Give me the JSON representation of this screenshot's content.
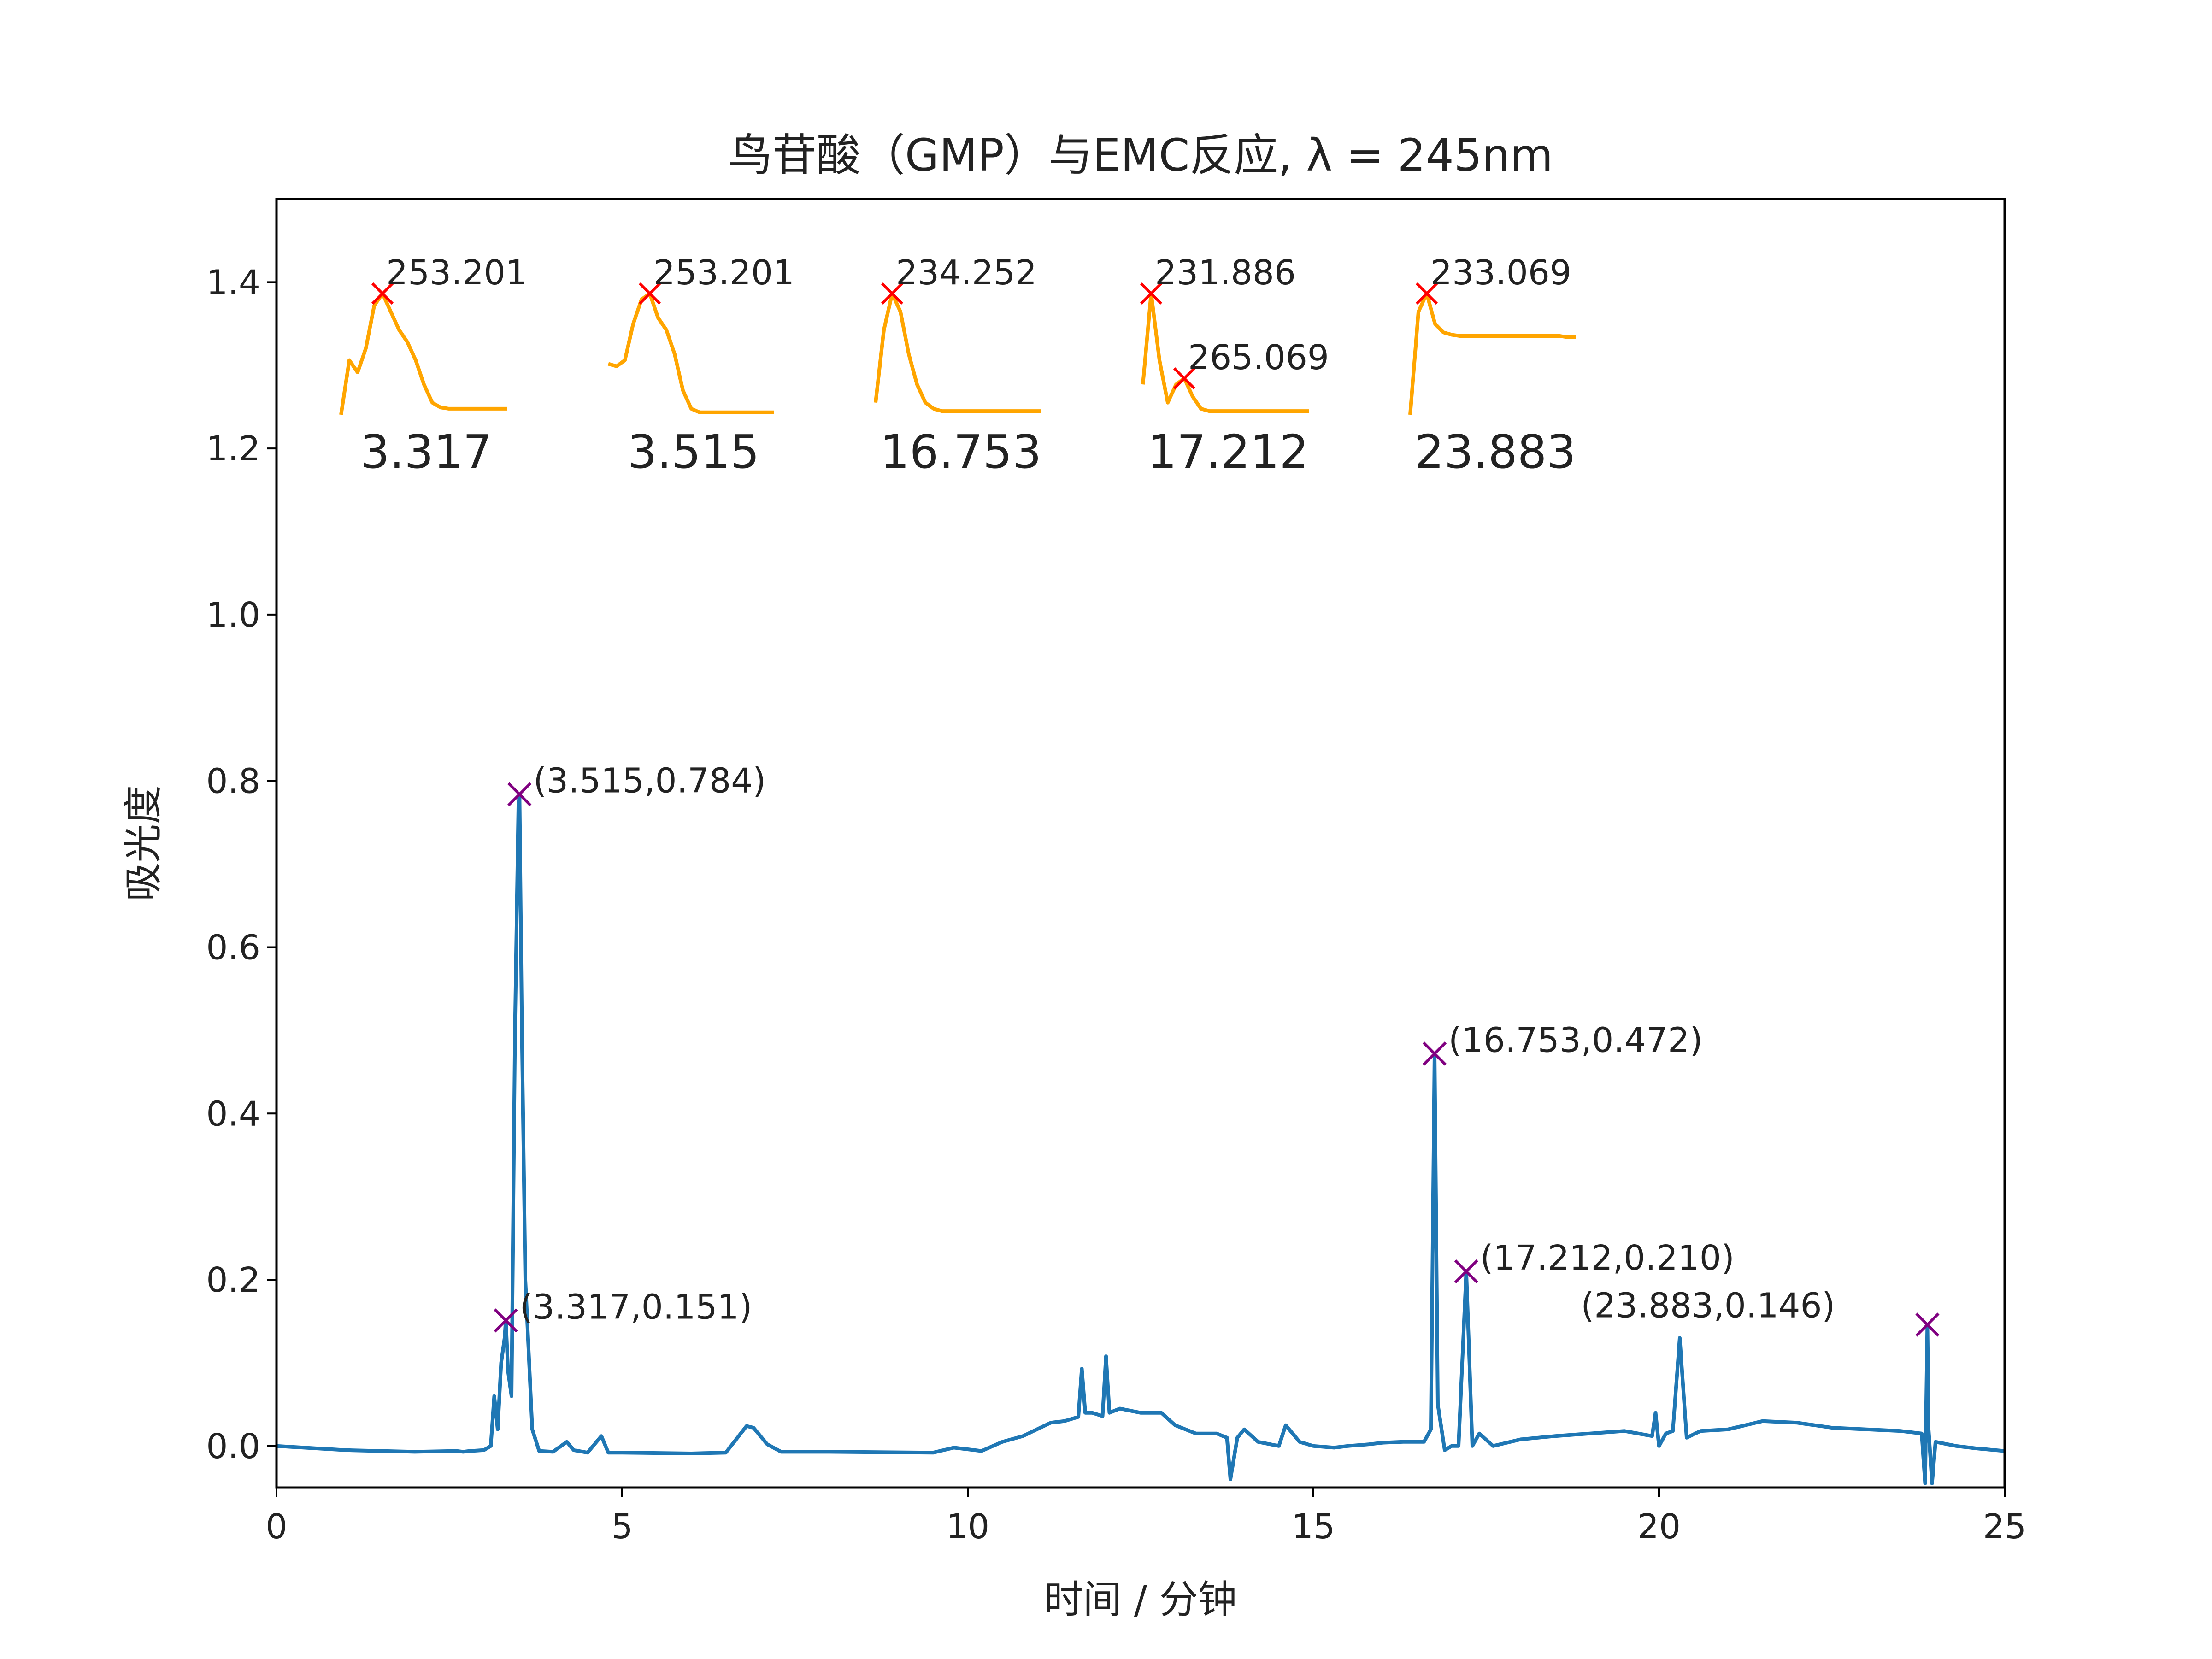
{
  "chart_data": {
    "type": "line",
    "title": "鸟苷酸（GMP）与EMC反应, λ = 245nm",
    "xlabel": "时间 / 分钟",
    "ylabel": "吸光度",
    "xlim": [
      0,
      25
    ],
    "ylim": [
      -0.05,
      1.5
    ],
    "xticks": [
      0,
      5,
      10,
      15,
      20,
      25
    ],
    "yticks": [
      0.0,
      0.2,
      0.4,
      0.6,
      0.8,
      1.0,
      1.2,
      1.4
    ],
    "xtick_labels": [
      "0",
      "5",
      "10",
      "15",
      "20",
      "25"
    ],
    "ytick_labels": [
      "0.0",
      "0.2",
      "0.4",
      "0.6",
      "0.8",
      "1.0",
      "1.2",
      "1.4"
    ],
    "grid": false,
    "colors": {
      "trace": "#1f77b4",
      "marker": "#800080",
      "spectrum": "#ffa500",
      "spectrum_peak": "#ff0000"
    },
    "series": [
      {
        "x": [
          0,
          1,
          2,
          2.6,
          2.7,
          2.8,
          3.0,
          3.1,
          3.15,
          3.2,
          3.25,
          3.3,
          3.317,
          3.35,
          3.4,
          3.45,
          3.5,
          3.515,
          3.55,
          3.6,
          3.7,
          3.8,
          4.0,
          4.2,
          4.3,
          4.5,
          4.7,
          4.8,
          5.0,
          6.0,
          6.5,
          6.8,
          6.9,
          7.1,
          7.3,
          8.0,
          9.5,
          9.8,
          10.2,
          10.5,
          10.8,
          11.0,
          11.2,
          11.4,
          11.6,
          11.65,
          11.7,
          11.8,
          11.95,
          12.0,
          12.05,
          12.2,
          12.5,
          12.8,
          13.0,
          13.3,
          13.6,
          13.75,
          13.8,
          13.9,
          14.0,
          14.2,
          14.5,
          14.6,
          14.8,
          15.0,
          15.3,
          15.5,
          15.8,
          16.0,
          16.3,
          16.6,
          16.7,
          16.753,
          16.8,
          16.9,
          17.0,
          17.1,
          17.212,
          17.3,
          17.4,
          17.6,
          18.0,
          18.5,
          19.0,
          19.5,
          19.9,
          19.95,
          20.0,
          20.1,
          20.2,
          20.3,
          20.4,
          20.6,
          21.0,
          21.5,
          22.0,
          22.5,
          23.0,
          23.5,
          23.8,
          23.85,
          23.883,
          23.9,
          23.95,
          24.0,
          24.3,
          24.6,
          25.0
        ],
        "y": [
          0.0,
          -0.005,
          -0.007,
          -0.006,
          -0.007,
          -0.006,
          -0.005,
          0.0,
          0.06,
          0.02,
          0.1,
          0.13,
          0.151,
          0.09,
          0.06,
          0.5,
          0.77,
          0.784,
          0.5,
          0.2,
          0.02,
          -0.006,
          -0.007,
          0.005,
          -0.005,
          -0.008,
          0.012,
          -0.008,
          -0.008,
          -0.009,
          -0.008,
          0.024,
          0.022,
          0.002,
          -0.007,
          -0.007,
          -0.008,
          -0.002,
          -0.006,
          0.005,
          0.012,
          0.02,
          0.028,
          0.03,
          0.035,
          0.093,
          0.04,
          0.04,
          0.036,
          0.108,
          0.04,
          0.045,
          0.04,
          0.04,
          0.025,
          0.015,
          0.015,
          0.01,
          -0.04,
          0.01,
          0.02,
          0.005,
          0.0,
          0.025,
          0.005,
          0.0,
          -0.002,
          0.0,
          0.002,
          0.004,
          0.005,
          0.005,
          0.02,
          0.472,
          0.05,
          -0.005,
          0.0,
          0.0,
          0.21,
          0.0,
          0.015,
          0.0,
          0.008,
          0.012,
          0.015,
          0.018,
          0.012,
          0.04,
          0.0,
          0.015,
          0.018,
          0.13,
          0.01,
          0.018,
          0.02,
          0.03,
          0.028,
          0.022,
          0.02,
          0.018,
          0.015,
          -0.045,
          0.146,
          0.02,
          -0.045,
          0.005,
          0.0,
          -0.003,
          -0.006
        ]
      }
    ],
    "peaks": [
      {
        "x": 3.317,
        "y": 0.151,
        "label": "(3.317,0.151)"
      },
      {
        "x": 3.515,
        "y": 0.784,
        "label": "(3.515,0.784)"
      },
      {
        "x": 16.753,
        "y": 0.472,
        "label": "(16.753,0.472)"
      },
      {
        "x": 17.212,
        "y": 0.21,
        "label": "(17.212,0.210)"
      },
      {
        "x": 23.883,
        "y": 0.146,
        "label": "(23.883,0.146)"
      }
    ],
    "spectra": [
      {
        "time_label": "3.317",
        "peak_labels": [
          "253.201"
        ],
        "shape": [
          0.0,
          0.45,
          0.35,
          0.55,
          0.9,
          1.0,
          0.85,
          0.7,
          0.6,
          0.45,
          0.25,
          0.1,
          0.06,
          0.05,
          0.05,
          0.05,
          0.05,
          0.05,
          0.05,
          0.05,
          0.05
        ],
        "peak_idx": [
          5
        ]
      },
      {
        "time_label": "3.515",
        "peak_labels": [
          "253.201"
        ],
        "shape": [
          0.42,
          0.4,
          0.45,
          0.75,
          0.95,
          1.0,
          0.8,
          0.7,
          0.5,
          0.2,
          0.05,
          0.02,
          0.02,
          0.02,
          0.02,
          0.02,
          0.02,
          0.02,
          0.02,
          0.02,
          0.02
        ],
        "peak_idx": [
          5
        ]
      },
      {
        "time_label": "16.753",
        "peak_labels": [
          "234.252"
        ],
        "shape": [
          0.1,
          0.7,
          1.0,
          0.85,
          0.5,
          0.25,
          0.1,
          0.05,
          0.03,
          0.03,
          0.03,
          0.03,
          0.03,
          0.03,
          0.03,
          0.03,
          0.03,
          0.03,
          0.03,
          0.03,
          0.03
        ],
        "peak_idx": [
          2
        ]
      },
      {
        "time_label": "17.212",
        "peak_labels": [
          "231.886",
          "265.069"
        ],
        "shape": [
          0.25,
          1.0,
          0.45,
          0.1,
          0.25,
          0.3,
          0.15,
          0.05,
          0.03,
          0.03,
          0.03,
          0.03,
          0.03,
          0.03,
          0.03,
          0.03,
          0.03,
          0.03,
          0.03,
          0.03,
          0.03
        ],
        "peak_idx": [
          1,
          5
        ]
      },
      {
        "time_label": "23.883",
        "peak_labels": [
          "233.069"
        ],
        "shape": [
          0.0,
          0.85,
          1.0,
          0.75,
          0.68,
          0.66,
          0.65,
          0.65,
          0.65,
          0.65,
          0.65,
          0.65,
          0.65,
          0.65,
          0.65,
          0.65,
          0.65,
          0.65,
          0.65,
          0.64,
          0.64
        ],
        "peak_idx": [
          2
        ]
      }
    ]
  }
}
